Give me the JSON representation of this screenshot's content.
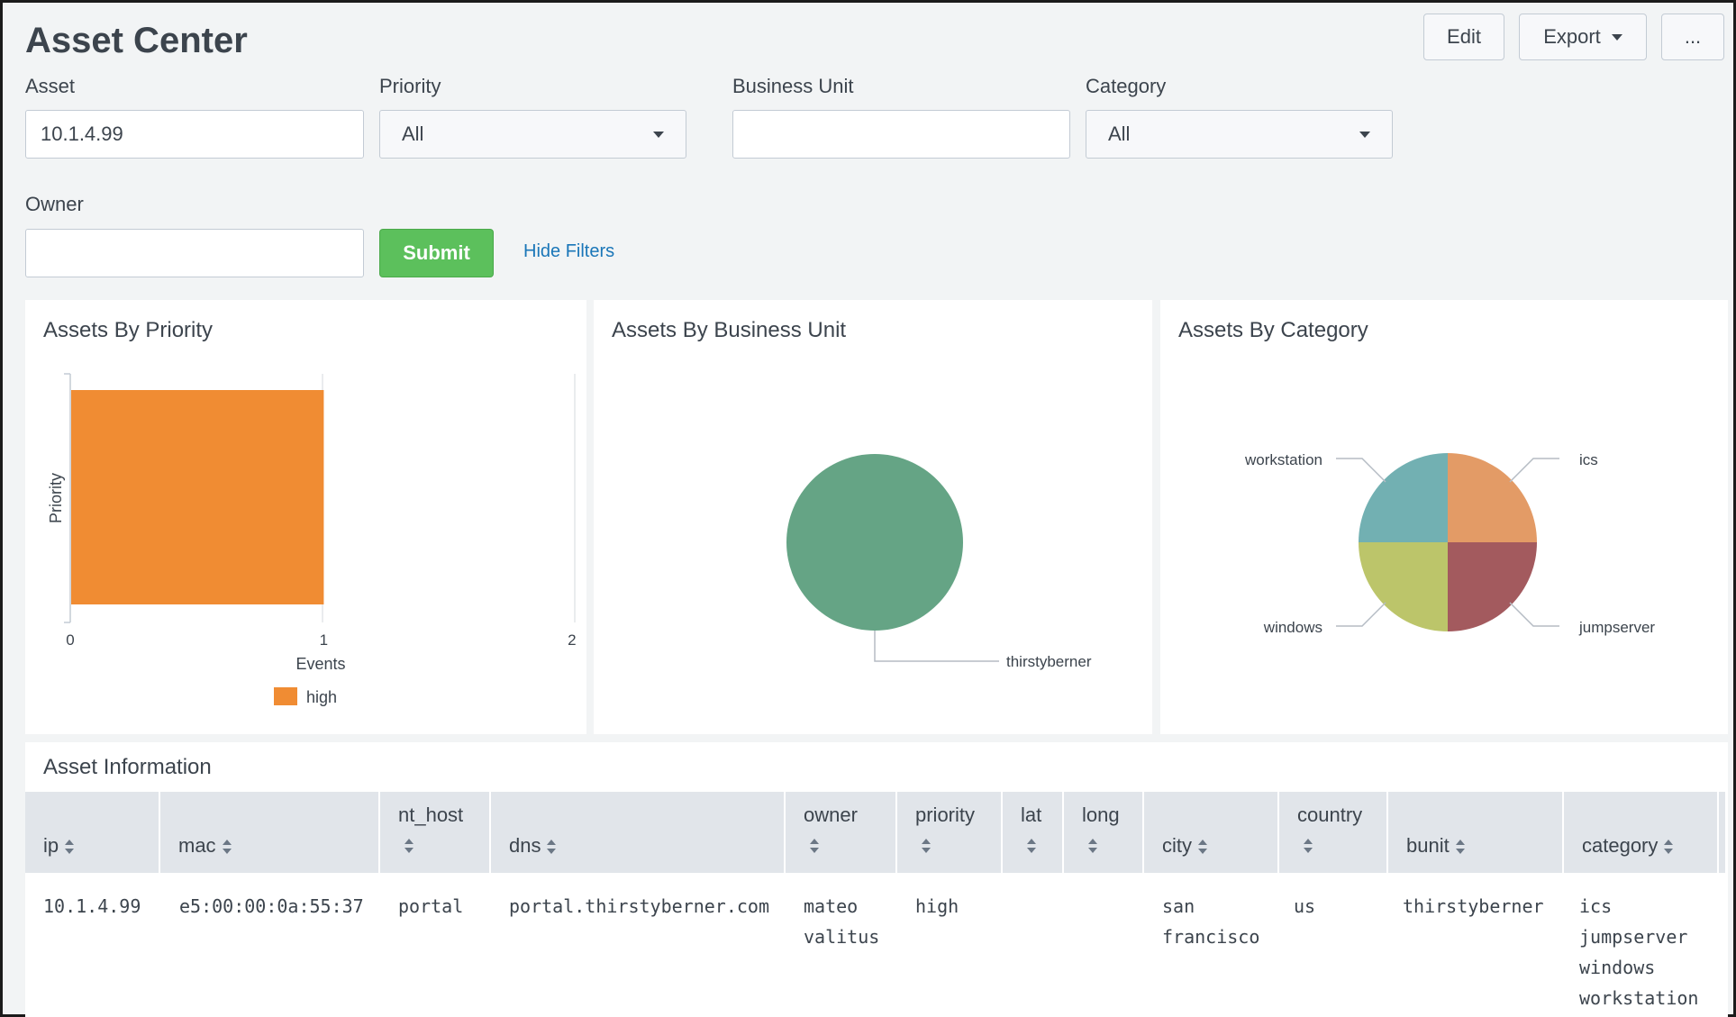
{
  "page": {
    "title": "Asset Center"
  },
  "actions": {
    "edit": "Edit",
    "export": "Export",
    "more": "..."
  },
  "filters": {
    "asset": {
      "label": "Asset",
      "value": "10.1.4.99"
    },
    "priority": {
      "label": "Priority",
      "value": "All"
    },
    "business_unit": {
      "label": "Business Unit",
      "value": ""
    },
    "category": {
      "label": "Category",
      "value": "All"
    },
    "owner": {
      "label": "Owner",
      "value": ""
    },
    "submit": "Submit",
    "hide_filters": "Hide Filters"
  },
  "panels": {
    "priority": {
      "title": "Assets By Priority"
    },
    "business_unit": {
      "title": "Assets By Business Unit"
    },
    "category": {
      "title": "Assets By Category"
    },
    "table": {
      "title": "Asset Information"
    }
  },
  "chart_data": [
    {
      "type": "bar",
      "orientation": "horizontal",
      "title": "Assets By Priority",
      "xlabel": "Events",
      "ylabel": "Priority",
      "categories": [
        "high"
      ],
      "series": [
        {
          "name": "high",
          "values": [
            1
          ],
          "color": "#f08c33"
        }
      ],
      "xlim": [
        0,
        2
      ],
      "xticks": [
        "0",
        "1",
        "2"
      ],
      "legend": "bottom"
    },
    {
      "type": "pie",
      "title": "Assets By Business Unit",
      "labels": [
        "thirstyberner"
      ],
      "values": [
        1
      ],
      "colors": [
        "#65a485"
      ]
    },
    {
      "type": "pie",
      "title": "Assets By Category",
      "labels": [
        "ics",
        "jumpserver",
        "windows",
        "workstation"
      ],
      "values": [
        1,
        1,
        1,
        1
      ],
      "colors": [
        "#e39b66",
        "#a35a5e",
        "#bcc56a",
        "#72b0b2"
      ]
    }
  ],
  "table": {
    "columns": [
      "ip",
      "mac",
      "nt_host",
      "dns",
      "owner",
      "priority",
      "lat",
      "long",
      "city",
      "country",
      "bunit",
      "category"
    ],
    "rows": [
      {
        "ip": "10.1.4.99",
        "mac": "e5:00:00:0a:55:37",
        "nt_host": "portal",
        "dns": "portal.thirstyberner.com",
        "owner": [
          "mateo",
          "valitus"
        ],
        "priority": "high",
        "lat": "",
        "long": "",
        "city": [
          "san",
          "francisco"
        ],
        "country": "us",
        "bunit": "thirstyberner",
        "category": [
          "ics",
          "jumpserver",
          "windows",
          "workstation"
        ]
      }
    ]
  }
}
